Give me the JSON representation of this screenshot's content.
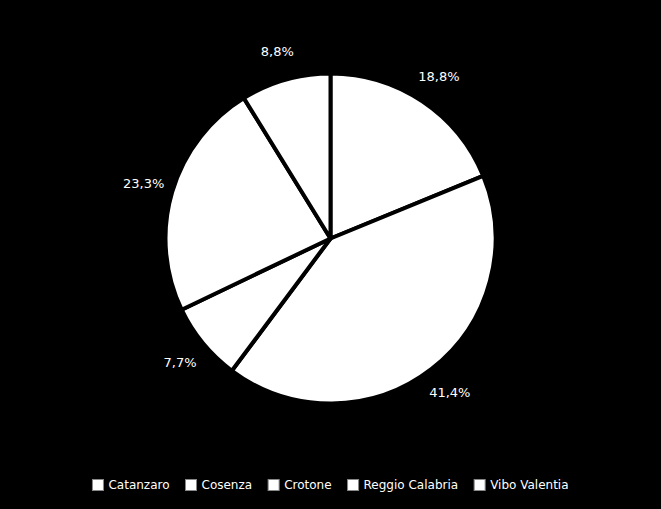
{
  "chart_data": {
    "type": "pie",
    "categories": [
      "Catanzaro",
      "Cosenza",
      "Crotone",
      "Reggio Calabria",
      "Vibo Valentia"
    ],
    "values": [
      18.8,
      41.4,
      7.7,
      23.3,
      8.8
    ],
    "value_labels": [
      "18,8%",
      "41,4%",
      "7,7%",
      "23,3%",
      "8,8%"
    ],
    "color": "#ffffff",
    "data_labels": true,
    "legend": "bottom"
  }
}
